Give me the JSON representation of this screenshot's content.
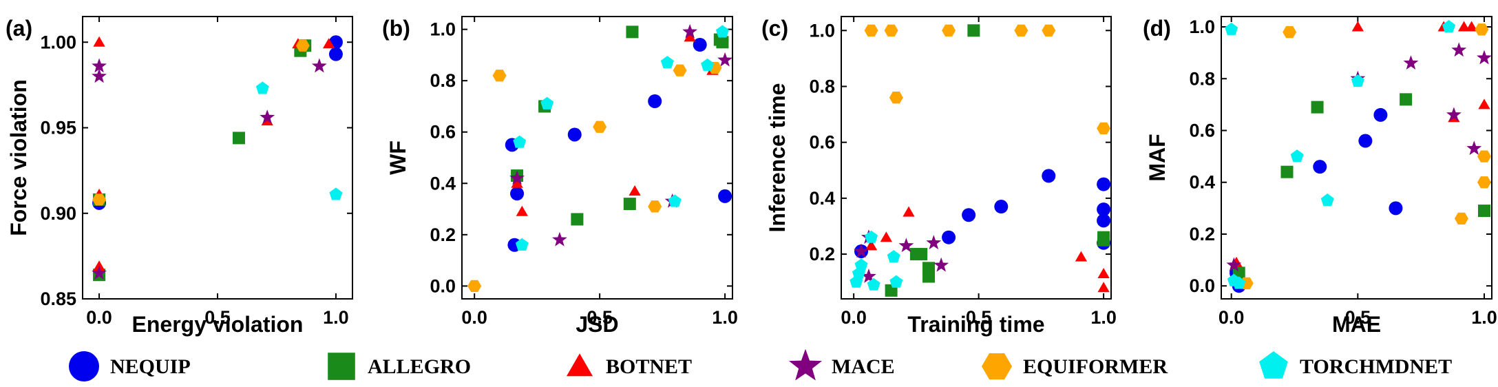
{
  "colors": {
    "NEQUIP": "#0000ee",
    "ALLEGRO": "#1a8a1a",
    "BOTNET": "#ff0000",
    "MACE": "#800080",
    "EQUIFORMER": "#ffa500",
    "TORCHMDNET": "#00f0f0"
  },
  "legend": [
    {
      "name": "NEQUIP",
      "marker": "circle"
    },
    {
      "name": "ALLEGRO",
      "marker": "square"
    },
    {
      "name": "BOTNET",
      "marker": "triangle"
    },
    {
      "name": "MACE",
      "marker": "star"
    },
    {
      "name": "EQUIFORMER",
      "marker": "hexagon"
    },
    {
      "name": "TORCHMDNET",
      "marker": "pentagon"
    }
  ],
  "chart_data": [
    {
      "type": "scatter",
      "panel_label": "(a)",
      "xlabel": "Energy violation",
      "ylabel": "Force violation",
      "xlim": [
        -0.07,
        1.07
      ],
      "ylim": [
        0.85,
        1.015
      ],
      "xticks": [
        0.0,
        0.5,
        1.0
      ],
      "xtick_labels": [
        "0.0",
        "0.5",
        "1.0"
      ],
      "yticks": [
        0.85,
        0.9,
        0.95,
        1.0
      ],
      "ytick_labels": [
        "0.85",
        "0.90",
        "0.95",
        "1.00"
      ],
      "series": [
        {
          "name": "NEQUIP",
          "points": [
            [
              0.0,
              0.906
            ],
            [
              1.0,
              1.0
            ],
            [
              1.0,
              0.993
            ]
          ]
        },
        {
          "name": "ALLEGRO",
          "points": [
            [
              0.0,
              0.864
            ],
            [
              0.0,
              0.908
            ],
            [
              0.59,
              0.944
            ],
            [
              0.85,
              0.995
            ],
            [
              0.87,
              0.998
            ]
          ]
        },
        {
          "name": "BOTNET",
          "points": [
            [
              0.0,
              1.0
            ],
            [
              0.0,
              0.911
            ],
            [
              0.0,
              0.869
            ],
            [
              0.71,
              0.954
            ],
            [
              0.84,
              0.999
            ],
            [
              0.97,
              0.999
            ]
          ]
        },
        {
          "name": "MACE",
          "points": [
            [
              0.0,
              0.986
            ],
            [
              0.0,
              0.98
            ],
            [
              0.0,
              0.865
            ],
            [
              0.71,
              0.956
            ],
            [
              0.93,
              0.986
            ]
          ]
        },
        {
          "name": "EQUIFORMER",
          "points": [
            [
              0.0,
              0.908
            ],
            [
              0.86,
              0.998
            ]
          ]
        },
        {
          "name": "TORCHMDNET",
          "points": [
            [
              0.69,
              0.973
            ],
            [
              1.0,
              0.911
            ]
          ]
        }
      ]
    },
    {
      "type": "scatter",
      "panel_label": "(b)",
      "xlabel": "JSD",
      "ylabel": "WF",
      "xlim": [
        -0.05,
        1.03
      ],
      "ylim": [
        -0.05,
        1.05
      ],
      "xticks": [
        0.0,
        0.5,
        1.0
      ],
      "xtick_labels": [
        "0.0",
        "0.5",
        "1.0"
      ],
      "yticks": [
        0.0,
        0.2,
        0.4,
        0.6,
        0.8,
        1.0
      ],
      "ytick_labels": [
        "0.0",
        "0.2",
        "0.4",
        "0.6",
        "0.8",
        "1.0"
      ],
      "series": [
        {
          "name": "NEQUIP",
          "points": [
            [
              0.15,
              0.55
            ],
            [
              0.17,
              0.36
            ],
            [
              0.16,
              0.16
            ],
            [
              0.4,
              0.59
            ],
            [
              0.72,
              0.72
            ],
            [
              0.9,
              0.94
            ],
            [
              1.0,
              0.35
            ]
          ]
        },
        {
          "name": "ALLEGRO",
          "points": [
            [
              0.17,
              0.43
            ],
            [
              0.28,
              0.7
            ],
            [
              0.41,
              0.26
            ],
            [
              0.62,
              0.32
            ],
            [
              0.63,
              0.99
            ],
            [
              0.98,
              0.96
            ],
            [
              0.99,
              0.95
            ]
          ]
        },
        {
          "name": "BOTNET",
          "points": [
            [
              0.17,
              0.4
            ],
            [
              0.19,
              0.29
            ],
            [
              0.64,
              0.37
            ],
            [
              0.86,
              0.97
            ],
            [
              0.95,
              0.84
            ]
          ]
        },
        {
          "name": "MACE",
          "points": [
            [
              0.17,
              0.42
            ],
            [
              0.34,
              0.18
            ],
            [
              0.79,
              0.33
            ],
            [
              0.86,
              0.99
            ],
            [
              1.0,
              0.88
            ]
          ]
        },
        {
          "name": "EQUIFORMER",
          "points": [
            [
              0.0,
              0.0
            ],
            [
              0.1,
              0.82
            ],
            [
              0.5,
              0.62
            ],
            [
              0.72,
              0.31
            ],
            [
              0.82,
              0.84
            ],
            [
              0.96,
              0.85
            ]
          ]
        },
        {
          "name": "TORCHMDNET",
          "points": [
            [
              0.19,
              0.16
            ],
            [
              0.18,
              0.56
            ],
            [
              0.29,
              0.71
            ],
            [
              0.77,
              0.87
            ],
            [
              0.8,
              0.33
            ],
            [
              0.93,
              0.86
            ],
            [
              0.99,
              0.99
            ]
          ]
        }
      ]
    },
    {
      "type": "scatter",
      "panel_label": "(c)",
      "xlabel": "Training time",
      "ylabel": "Inference time",
      "xlim": [
        -0.05,
        1.03
      ],
      "ylim": [
        0.04,
        1.05
      ],
      "xticks": [
        0.0,
        0.5,
        1.0
      ],
      "xtick_labels": [
        "0.0",
        "0.5",
        "1.0"
      ],
      "yticks": [
        0.2,
        0.4,
        0.6,
        0.8,
        1.0
      ],
      "ytick_labels": [
        "0.2",
        "0.4",
        "0.6",
        "0.8",
        "1.0"
      ],
      "series": [
        {
          "name": "NEQUIP",
          "points": [
            [
              0.03,
              0.21
            ],
            [
              0.38,
              0.26
            ],
            [
              0.46,
              0.34
            ],
            [
              0.59,
              0.37
            ],
            [
              0.78,
              0.48
            ],
            [
              1.0,
              0.45
            ],
            [
              1.0,
              0.36
            ],
            [
              1.0,
              0.32
            ],
            [
              1.0,
              0.24
            ]
          ]
        },
        {
          "name": "ALLEGRO",
          "points": [
            [
              0.15,
              0.07
            ],
            [
              0.25,
              0.2
            ],
            [
              0.27,
              0.2
            ],
            [
              0.3,
              0.15
            ],
            [
              0.3,
              0.12
            ],
            [
              0.48,
              1.0
            ],
            [
              1.0,
              0.26
            ],
            [
              1.0,
              0.25
            ]
          ]
        },
        {
          "name": "BOTNET",
          "points": [
            [
              0.07,
              0.23
            ],
            [
              0.13,
              0.26
            ],
            [
              0.22,
              0.35
            ],
            [
              0.91,
              0.19
            ],
            [
              1.0,
              0.13
            ],
            [
              1.0,
              0.08
            ]
          ]
        },
        {
          "name": "MACE",
          "points": [
            [
              0.03,
              0.21
            ],
            [
              0.06,
              0.26
            ],
            [
              0.06,
              0.12
            ],
            [
              0.21,
              0.23
            ],
            [
              0.32,
              0.24
            ],
            [
              0.35,
              0.16
            ]
          ]
        },
        {
          "name": "EQUIFORMER",
          "points": [
            [
              0.07,
              1.0
            ],
            [
              0.15,
              1.0
            ],
            [
              0.17,
              0.76
            ],
            [
              0.38,
              1.0
            ],
            [
              0.67,
              1.0
            ],
            [
              0.78,
              1.0
            ],
            [
              1.0,
              0.65
            ]
          ]
        },
        {
          "name": "TORCHMDNET",
          "points": [
            [
              0.01,
              0.1
            ],
            [
              0.02,
              0.13
            ],
            [
              0.03,
              0.16
            ],
            [
              0.07,
              0.26
            ],
            [
              0.08,
              0.09
            ],
            [
              0.16,
              0.19
            ],
            [
              0.17,
              0.1
            ]
          ]
        }
      ]
    },
    {
      "type": "scatter",
      "panel_label": "(d)",
      "xlabel": "MAE",
      "ylabel": "MAF",
      "xlim": [
        -0.04,
        1.03
      ],
      "ylim": [
        -0.05,
        1.04
      ],
      "xticks": [
        0.0,
        0.5,
        1.0
      ],
      "xtick_labels": [
        "0.0",
        "0.5",
        "1.0"
      ],
      "yticks": [
        0.0,
        0.2,
        0.4,
        0.6,
        0.8,
        1.0
      ],
      "ytick_labels": [
        "0.0",
        "0.2",
        "0.4",
        "0.6",
        "0.8",
        "1.0"
      ],
      "series": [
        {
          "name": "NEQUIP",
          "points": [
            [
              0.02,
              0.05
            ],
            [
              0.03,
              0.0
            ],
            [
              0.35,
              0.46
            ],
            [
              0.53,
              0.56
            ],
            [
              0.59,
              0.66
            ],
            [
              0.65,
              0.3
            ]
          ]
        },
        {
          "name": "ALLEGRO",
          "points": [
            [
              0.03,
              0.05
            ],
            [
              0.22,
              0.44
            ],
            [
              0.34,
              0.69
            ],
            [
              0.69,
              0.72
            ],
            [
              1.0,
              0.29
            ]
          ]
        },
        {
          "name": "BOTNET",
          "points": [
            [
              0.02,
              0.09
            ],
            [
              0.5,
              1.0
            ],
            [
              0.84,
              1.0
            ],
            [
              0.88,
              0.65
            ],
            [
              0.92,
              1.0
            ],
            [
              0.95,
              1.0
            ],
            [
              1.0,
              0.7
            ]
          ]
        },
        {
          "name": "MACE",
          "points": [
            [
              0.01,
              0.08
            ],
            [
              0.5,
              0.8
            ],
            [
              0.71,
              0.86
            ],
            [
              0.88,
              0.66
            ],
            [
              0.9,
              0.91
            ],
            [
              0.96,
              0.53
            ],
            [
              1.0,
              0.88
            ]
          ]
        },
        {
          "name": "EQUIFORMER",
          "points": [
            [
              0.06,
              0.01
            ],
            [
              0.23,
              0.98
            ],
            [
              0.91,
              0.26
            ],
            [
              0.99,
              0.99
            ],
            [
              1.0,
              0.5
            ],
            [
              1.0,
              0.4
            ]
          ]
        },
        {
          "name": "TORCHMDNET",
          "points": [
            [
              0.0,
              0.99
            ],
            [
              0.01,
              0.02
            ],
            [
              0.03,
              0.01
            ],
            [
              0.26,
              0.5
            ],
            [
              0.38,
              0.33
            ],
            [
              0.5,
              0.79
            ],
            [
              0.86,
              1.0
            ]
          ]
        }
      ]
    }
  ]
}
